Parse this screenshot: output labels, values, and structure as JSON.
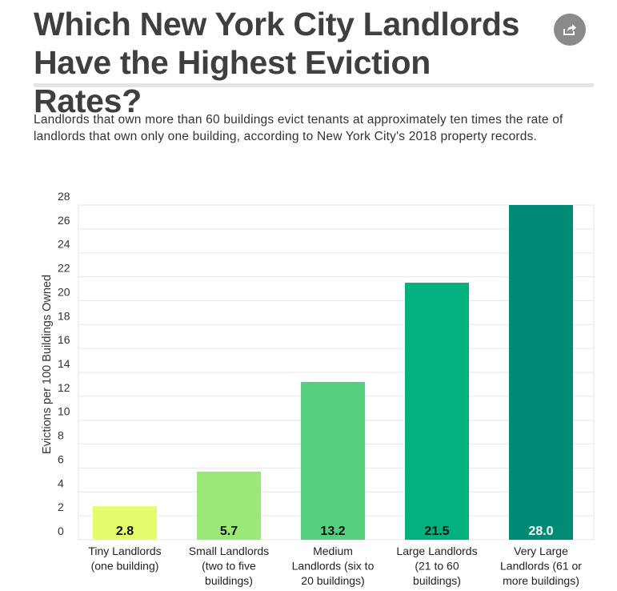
{
  "header": {
    "title": "Which New York City Landlords Have the Highest Eviction Rates?",
    "subtitle": "Landlords that own more than 60 buildings evict tenants at approximately ten times the rate of landlords that own only one building, according to New York City's 2018 property records.",
    "share_icon": "share-icon"
  },
  "chart_data": {
    "type": "bar",
    "title": "Which New York City Landlords Have the Highest Eviction Rates?",
    "xlabel": "",
    "ylabel": "Evictions per 100 Buildings Owned",
    "ylim": [
      0,
      28
    ],
    "yticks": [
      0,
      2,
      4,
      6,
      8,
      10,
      12,
      14,
      16,
      18,
      20,
      22,
      24,
      26,
      28
    ],
    "grid": true,
    "categories": [
      [
        "Tiny Landlords",
        "(one building)"
      ],
      [
        "Small Landlords",
        "(two to five",
        "buildings)"
      ],
      [
        "Medium",
        "Landlords (six to",
        "20 buildings)"
      ],
      [
        "Large Landlords",
        "(21 to 60",
        "buildings)"
      ],
      [
        "Very Large",
        "Landlords (61 or",
        "more buildings)"
      ]
    ],
    "values": [
      2.8,
      5.7,
      13.2,
      21.5,
      28.0
    ],
    "value_labels": [
      "2.8",
      "5.7",
      "13.2",
      "21.5",
      "28.0"
    ],
    "colors": [
      "#e4fc6c",
      "#9be879",
      "#55d07e",
      "#02b17d",
      "#008c74"
    ],
    "label_colors": [
      "#111111",
      "#111111",
      "#111111",
      "#111111",
      "#ffffff"
    ]
  }
}
